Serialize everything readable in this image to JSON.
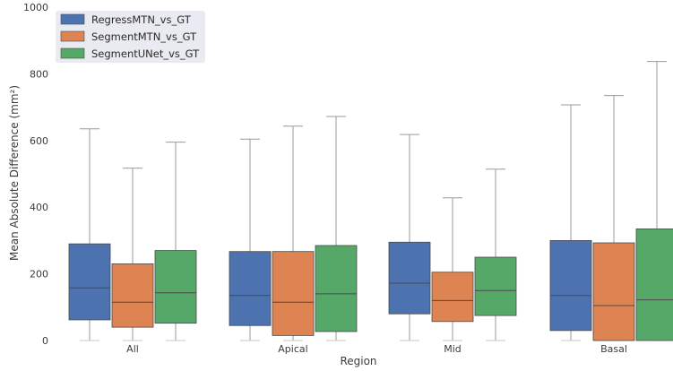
{
  "chart_data": {
    "type": "box",
    "xlabel": "Region",
    "ylabel": "Mean Absolute Difference (mm²)",
    "ylim": [
      0,
      1000
    ],
    "yticks": [
      0,
      200,
      400,
      600,
      800,
      1000
    ],
    "grid": false,
    "legend_position": "top-left",
    "categories": [
      "All",
      "Apical",
      "Mid",
      "Basal"
    ],
    "series": [
      {
        "name": "RegressMTN_vs_GT",
        "color": "#4c72b0",
        "boxes": [
          {
            "whislo": 0,
            "q1": 62,
            "med": 158,
            "q3": 290,
            "whishi": 635
          },
          {
            "whislo": 0,
            "q1": 45,
            "med": 135,
            "q3": 267,
            "whishi": 604
          },
          {
            "whislo": 0,
            "q1": 80,
            "med": 172,
            "q3": 295,
            "whishi": 618
          },
          {
            "whislo": 0,
            "q1": 30,
            "med": 135,
            "q3": 300,
            "whishi": 707
          }
        ]
      },
      {
        "name": "SegmentMTN_vs_GT",
        "color": "#dd8452",
        "boxes": [
          {
            "whislo": 0,
            "q1": 40,
            "med": 115,
            "q3": 230,
            "whishi": 517
          },
          {
            "whislo": 0,
            "q1": 15,
            "med": 115,
            "q3": 267,
            "whishi": 643
          },
          {
            "whislo": 0,
            "q1": 57,
            "med": 120,
            "q3": 205,
            "whishi": 428
          },
          {
            "whislo": 0,
            "q1": 0,
            "med": 105,
            "q3": 293,
            "whishi": 735
          }
        ]
      },
      {
        "name": "SegmentUNet_vs_GT",
        "color": "#55a868",
        "boxes": [
          {
            "whislo": 0,
            "q1": 52,
            "med": 143,
            "q3": 270,
            "whishi": 595
          },
          {
            "whislo": 0,
            "q1": 27,
            "med": 140,
            "q3": 285,
            "whishi": 672
          },
          {
            "whislo": 0,
            "q1": 75,
            "med": 150,
            "q3": 250,
            "whishi": 514
          },
          {
            "whislo": 0,
            "q1": 0,
            "med": 122,
            "q3": 335,
            "whishi": 837
          }
        ]
      }
    ]
  }
}
